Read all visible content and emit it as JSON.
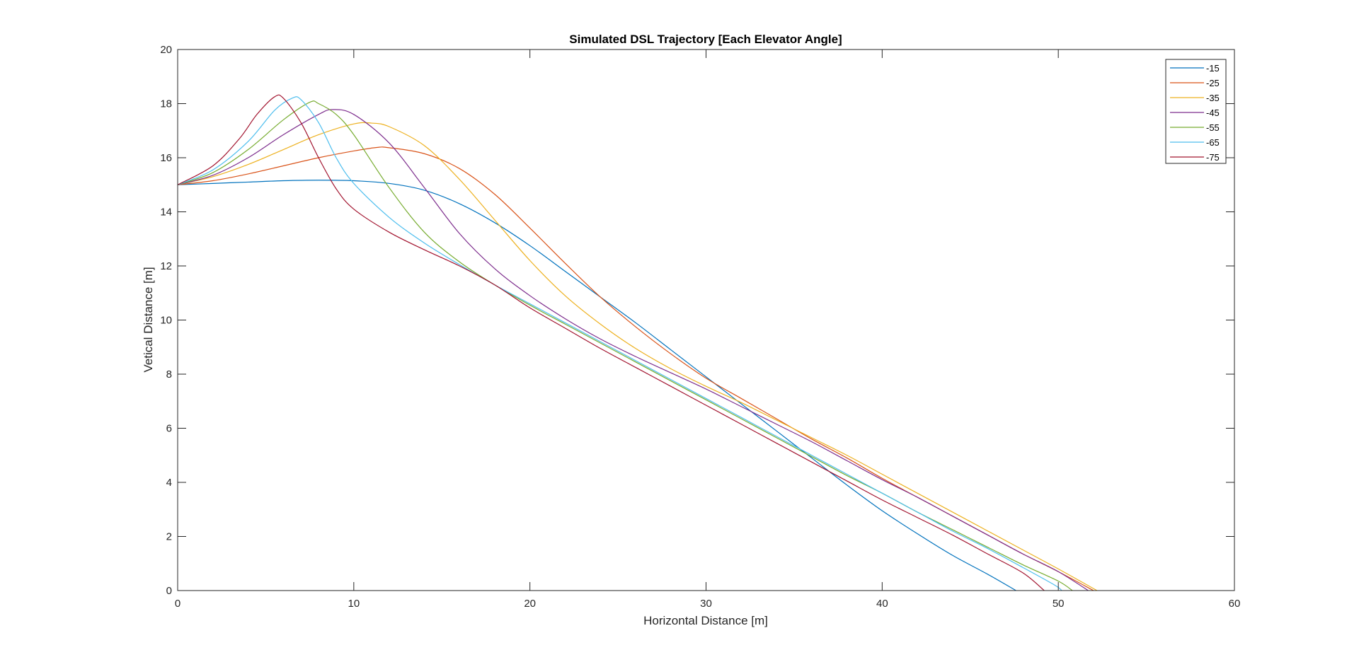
{
  "chart_data": {
    "type": "line",
    "title": "Simulated DSL Trajectory [Each Elevator Angle]",
    "xlabel": "Horizontal Distance [m]",
    "ylabel": "Vetical Distance [m]",
    "xlim": [
      0,
      60
    ],
    "ylim": [
      0,
      20
    ],
    "xticks": [
      "0",
      "10",
      "20",
      "30",
      "40",
      "50",
      "60"
    ],
    "yticks": [
      "0",
      "2",
      "4",
      "6",
      "8",
      "10",
      "12",
      "14",
      "16",
      "18",
      "20"
    ],
    "grid": false,
    "legend_position": "top-right",
    "series": [
      {
        "name": "-15",
        "color": "#0072BD",
        "points": [
          [
            0,
            15.0
          ],
          [
            2,
            15.05
          ],
          [
            4,
            15.1
          ],
          [
            6,
            15.15
          ],
          [
            8,
            15.17
          ],
          [
            10,
            15.15
          ],
          [
            12,
            15.05
          ],
          [
            14,
            14.8
          ],
          [
            16,
            14.3
          ],
          [
            18,
            13.6
          ],
          [
            20,
            12.75
          ],
          [
            22,
            11.8
          ],
          [
            24,
            10.85
          ],
          [
            26,
            9.9
          ],
          [
            28,
            8.9
          ],
          [
            30,
            7.9
          ],
          [
            32,
            6.9
          ],
          [
            34,
            5.9
          ],
          [
            36,
            4.9
          ],
          [
            38,
            3.9
          ],
          [
            40,
            2.95
          ],
          [
            42,
            2.1
          ],
          [
            44,
            1.3
          ],
          [
            46,
            0.6
          ],
          [
            47.6,
            0.0
          ]
        ]
      },
      {
        "name": "-25",
        "color": "#D95319",
        "points": [
          [
            0,
            15.0
          ],
          [
            2,
            15.15
          ],
          [
            4,
            15.4
          ],
          [
            6,
            15.7
          ],
          [
            8,
            16.0
          ],
          [
            10,
            16.25
          ],
          [
            11.3,
            16.38
          ],
          [
            12,
            16.37
          ],
          [
            14,
            16.15
          ],
          [
            16,
            15.6
          ],
          [
            18,
            14.65
          ],
          [
            20,
            13.4
          ],
          [
            22,
            12.1
          ],
          [
            24,
            10.85
          ],
          [
            26,
            9.75
          ],
          [
            28,
            8.75
          ],
          [
            30,
            7.85
          ],
          [
            32,
            7.1
          ],
          [
            34,
            6.35
          ],
          [
            36,
            5.6
          ],
          [
            38,
            4.9
          ],
          [
            40,
            4.15
          ],
          [
            42,
            3.45
          ],
          [
            44,
            2.75
          ],
          [
            46,
            2.05
          ],
          [
            48,
            1.35
          ],
          [
            50,
            0.7
          ],
          [
            52,
            0.0
          ]
        ]
      },
      {
        "name": "-35",
        "color": "#EDB120",
        "points": [
          [
            0,
            15.0
          ],
          [
            2,
            15.3
          ],
          [
            4,
            15.75
          ],
          [
            6,
            16.3
          ],
          [
            8,
            16.85
          ],
          [
            10,
            17.25
          ],
          [
            11,
            17.28
          ],
          [
            12,
            17.15
          ],
          [
            14,
            16.45
          ],
          [
            16,
            15.2
          ],
          [
            18,
            13.7
          ],
          [
            20,
            12.2
          ],
          [
            22,
            10.9
          ],
          [
            24,
            9.85
          ],
          [
            26,
            8.95
          ],
          [
            28,
            8.2
          ],
          [
            30,
            7.55
          ],
          [
            32,
            6.95
          ],
          [
            34,
            6.3
          ],
          [
            36,
            5.65
          ],
          [
            38,
            5.0
          ],
          [
            40,
            4.3
          ],
          [
            42,
            3.6
          ],
          [
            44,
            2.9
          ],
          [
            46,
            2.2
          ],
          [
            48,
            1.5
          ],
          [
            50,
            0.8
          ],
          [
            52.2,
            0.0
          ]
        ]
      },
      {
        "name": "-45",
        "color": "#7E2F8E",
        "points": [
          [
            0,
            15.0
          ],
          [
            2,
            15.35
          ],
          [
            4,
            16.0
          ],
          [
            6,
            16.85
          ],
          [
            8,
            17.6
          ],
          [
            8.8,
            17.78
          ],
          [
            10,
            17.6
          ],
          [
            12,
            16.55
          ],
          [
            14,
            14.9
          ],
          [
            16,
            13.2
          ],
          [
            18,
            11.9
          ],
          [
            20,
            10.9
          ],
          [
            22,
            10.05
          ],
          [
            24,
            9.3
          ],
          [
            26,
            8.65
          ],
          [
            28,
            8.05
          ],
          [
            30,
            7.45
          ],
          [
            32,
            6.8
          ],
          [
            34,
            6.15
          ],
          [
            36,
            5.5
          ],
          [
            38,
            4.8
          ],
          [
            40,
            4.1
          ],
          [
            42,
            3.45
          ],
          [
            44,
            2.75
          ],
          [
            46,
            2.05
          ],
          [
            48,
            1.35
          ],
          [
            50,
            0.7
          ],
          [
            51.7,
            0.0
          ]
        ]
      },
      {
        "name": "-55",
        "color": "#77AC30",
        "points": [
          [
            0,
            15.0
          ],
          [
            2,
            15.45
          ],
          [
            4,
            16.3
          ],
          [
            6,
            17.4
          ],
          [
            7.5,
            18.05
          ],
          [
            8,
            18.0
          ],
          [
            9,
            17.6
          ],
          [
            10,
            16.85
          ],
          [
            12,
            14.9
          ],
          [
            14,
            13.25
          ],
          [
            16,
            12.15
          ],
          [
            18,
            11.3
          ],
          [
            20,
            10.55
          ],
          [
            22,
            9.85
          ],
          [
            24,
            9.15
          ],
          [
            26,
            8.45
          ],
          [
            28,
            7.75
          ],
          [
            30,
            7.05
          ],
          [
            32,
            6.35
          ],
          [
            34,
            5.65
          ],
          [
            36,
            4.95
          ],
          [
            38,
            4.25
          ],
          [
            40,
            3.6
          ],
          [
            42,
            2.9
          ],
          [
            44,
            2.25
          ],
          [
            46,
            1.6
          ],
          [
            48,
            0.95
          ],
          [
            50,
            0.35
          ],
          [
            50.8,
            0.0
          ]
        ]
      },
      {
        "name": "-65",
        "color": "#4DBEEE",
        "points": [
          [
            0,
            15.0
          ],
          [
            2,
            15.55
          ],
          [
            4,
            16.6
          ],
          [
            5.5,
            17.75
          ],
          [
            6.5,
            18.2
          ],
          [
            7,
            18.15
          ],
          [
            8,
            17.3
          ],
          [
            9,
            16.0
          ],
          [
            10,
            15.05
          ],
          [
            12,
            13.8
          ],
          [
            14,
            12.85
          ],
          [
            16,
            12.05
          ],
          [
            18,
            11.3
          ],
          [
            20,
            10.6
          ],
          [
            22,
            9.9
          ],
          [
            24,
            9.2
          ],
          [
            26,
            8.5
          ],
          [
            28,
            7.8
          ],
          [
            30,
            7.1
          ],
          [
            32,
            6.4
          ],
          [
            34,
            5.7
          ],
          [
            36,
            5.0
          ],
          [
            38,
            4.3
          ],
          [
            40,
            3.6
          ],
          [
            42,
            2.9
          ],
          [
            44,
            2.2
          ],
          [
            46,
            1.55
          ],
          [
            48,
            0.85
          ],
          [
            49.8,
            0.2
          ],
          [
            50.2,
            0.0
          ]
        ]
      },
      {
        "name": "-75",
        "color": "#A2142F",
        "points": [
          [
            0,
            15.0
          ],
          [
            2,
            15.7
          ],
          [
            3.5,
            16.7
          ],
          [
            4.5,
            17.6
          ],
          [
            5.5,
            18.25
          ],
          [
            6,
            18.2
          ],
          [
            7,
            17.3
          ],
          [
            8,
            16.0
          ],
          [
            9,
            14.85
          ],
          [
            10,
            14.1
          ],
          [
            12,
            13.25
          ],
          [
            14,
            12.6
          ],
          [
            16,
            12.0
          ],
          [
            18,
            11.3
          ],
          [
            20,
            10.45
          ],
          [
            22,
            9.7
          ],
          [
            24,
            8.95
          ],
          [
            26,
            8.25
          ],
          [
            28,
            7.55
          ],
          [
            30,
            6.85
          ],
          [
            32,
            6.15
          ],
          [
            34,
            5.45
          ],
          [
            36,
            4.75
          ],
          [
            38,
            4.05
          ],
          [
            40,
            3.35
          ],
          [
            42,
            2.7
          ],
          [
            44,
            2.05
          ],
          [
            46,
            1.35
          ],
          [
            48,
            0.65
          ],
          [
            49.2,
            0.0
          ]
        ]
      }
    ]
  }
}
